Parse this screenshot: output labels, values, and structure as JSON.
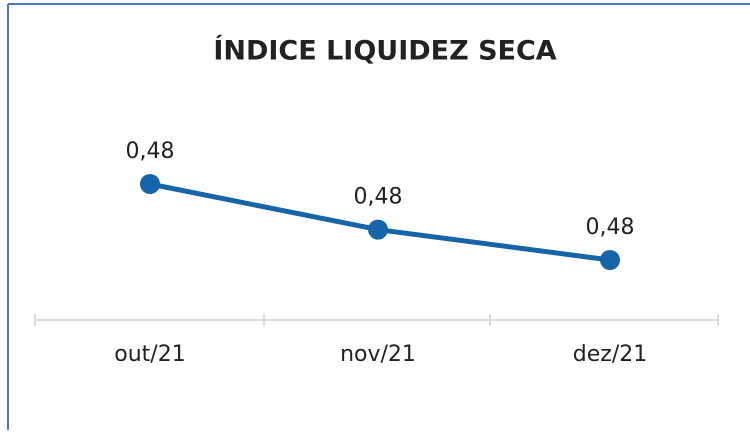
{
  "chart_data": {
    "type": "line",
    "title": "ÍNDICE LIQUIDEZ SECA",
    "categories": [
      "out/21",
      "nov/21",
      "dez/21"
    ],
    "values": [
      0.484,
      0.481,
      0.479
    ],
    "value_labels": [
      "0,48",
      "0,48",
      "0,48"
    ],
    "color": "#1565a8"
  }
}
